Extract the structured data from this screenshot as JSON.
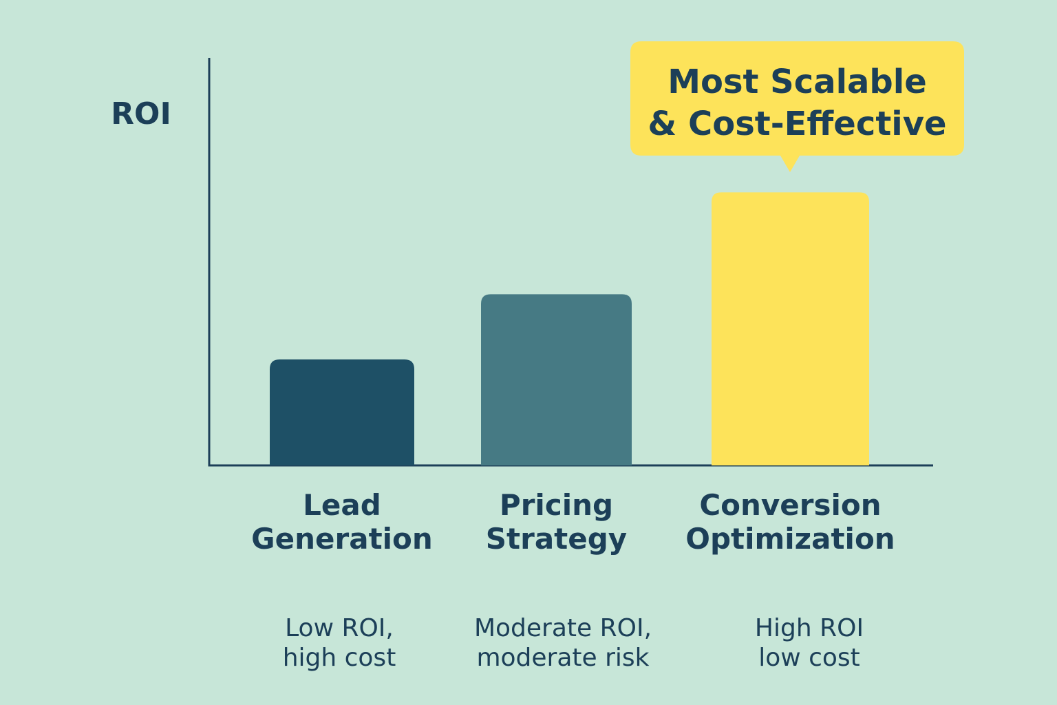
{
  "chart_data": {
    "type": "bar",
    "title": "",
    "xlabel": "",
    "ylabel": "ROI",
    "ylim": [
      0,
      100
    ],
    "categories": [
      [
        "Lead",
        "Generation"
      ],
      [
        "Pricing",
        "Strategy"
      ],
      [
        "Conversion",
        "Optimization"
      ]
    ],
    "values": [
      26,
      42,
      67
    ],
    "notes": [
      [
        "Low ROI,",
        "high cost"
      ],
      [
        "Moderate ROI,",
        "moderate risk"
      ],
      [
        "High ROI",
        "low cost"
      ]
    ],
    "bar_colors": [
      "#1e5066",
      "#467a84",
      "#fde35a"
    ],
    "annotation": {
      "target_index": 2,
      "lines": [
        "Most Scalable",
        "& Cost-Effective"
      ],
      "color": "#fde35a"
    },
    "grid": false,
    "legend": "none"
  },
  "colors": {
    "background": "#c7e6d8",
    "text": "#1c3f58",
    "axis": "#1c3f58"
  }
}
